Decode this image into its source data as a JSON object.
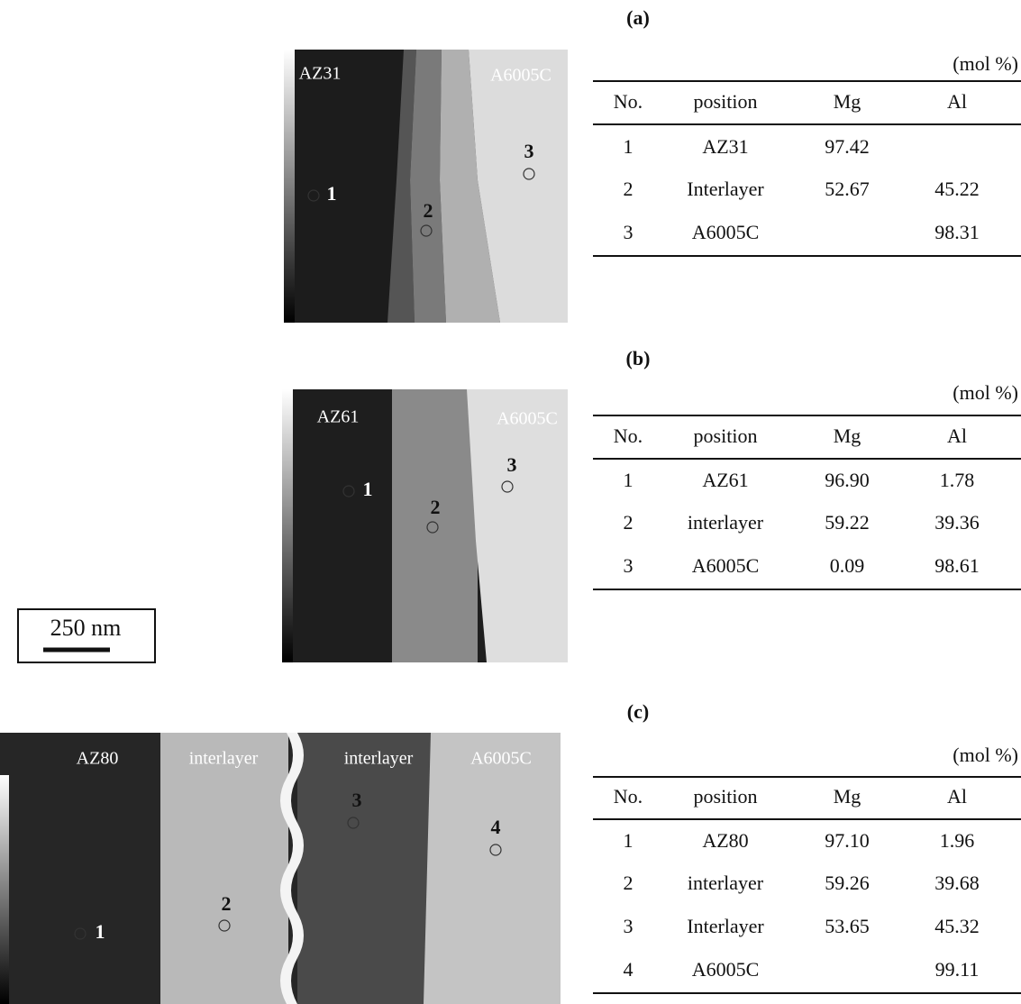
{
  "panels": [
    {
      "label": "(a)",
      "image_labels": [
        "AZ31",
        "A6005C"
      ],
      "points": [
        "1",
        "2",
        "3"
      ],
      "unit": "(mol %)",
      "header": [
        "No.",
        "position",
        "Mg",
        "Al"
      ],
      "rows": [
        [
          "1",
          "AZ31",
          "97.42",
          null
        ],
        [
          "2",
          "Interlayer",
          "52.67",
          "45.22"
        ],
        [
          "3",
          "A6005C",
          null,
          "98.31"
        ]
      ]
    },
    {
      "label": "(b)",
      "image_labels": [
        "AZ61",
        "A6005C"
      ],
      "points": [
        "1",
        "2",
        "3"
      ],
      "unit": "(mol %)",
      "header": [
        "No.",
        "position",
        "Mg",
        "Al"
      ],
      "rows": [
        [
          "1",
          "AZ61",
          "96.90",
          "1.78"
        ],
        [
          "2",
          "interlayer",
          "59.22",
          "39.36"
        ],
        [
          "3",
          "A6005C",
          "0.09",
          "98.61"
        ]
      ]
    },
    {
      "label": "(c)",
      "image_labels": [
        "AZ80",
        "interlayer",
        "interlayer",
        "A6005C"
      ],
      "points": [
        "1",
        "2",
        "3",
        "4"
      ],
      "unit": "(mol %)",
      "header": [
        "No.",
        "position",
        "Mg",
        "Al"
      ],
      "rows": [
        [
          "1",
          "AZ80",
          "97.10",
          "1.96"
        ],
        [
          "2",
          "interlayer",
          "59.26",
          "39.68"
        ],
        [
          "3",
          "Interlayer",
          "53.65",
          "45.32"
        ],
        [
          "4",
          "A6005C",
          null,
          "99.11"
        ]
      ]
    }
  ],
  "scale_bar": "250 nm"
}
